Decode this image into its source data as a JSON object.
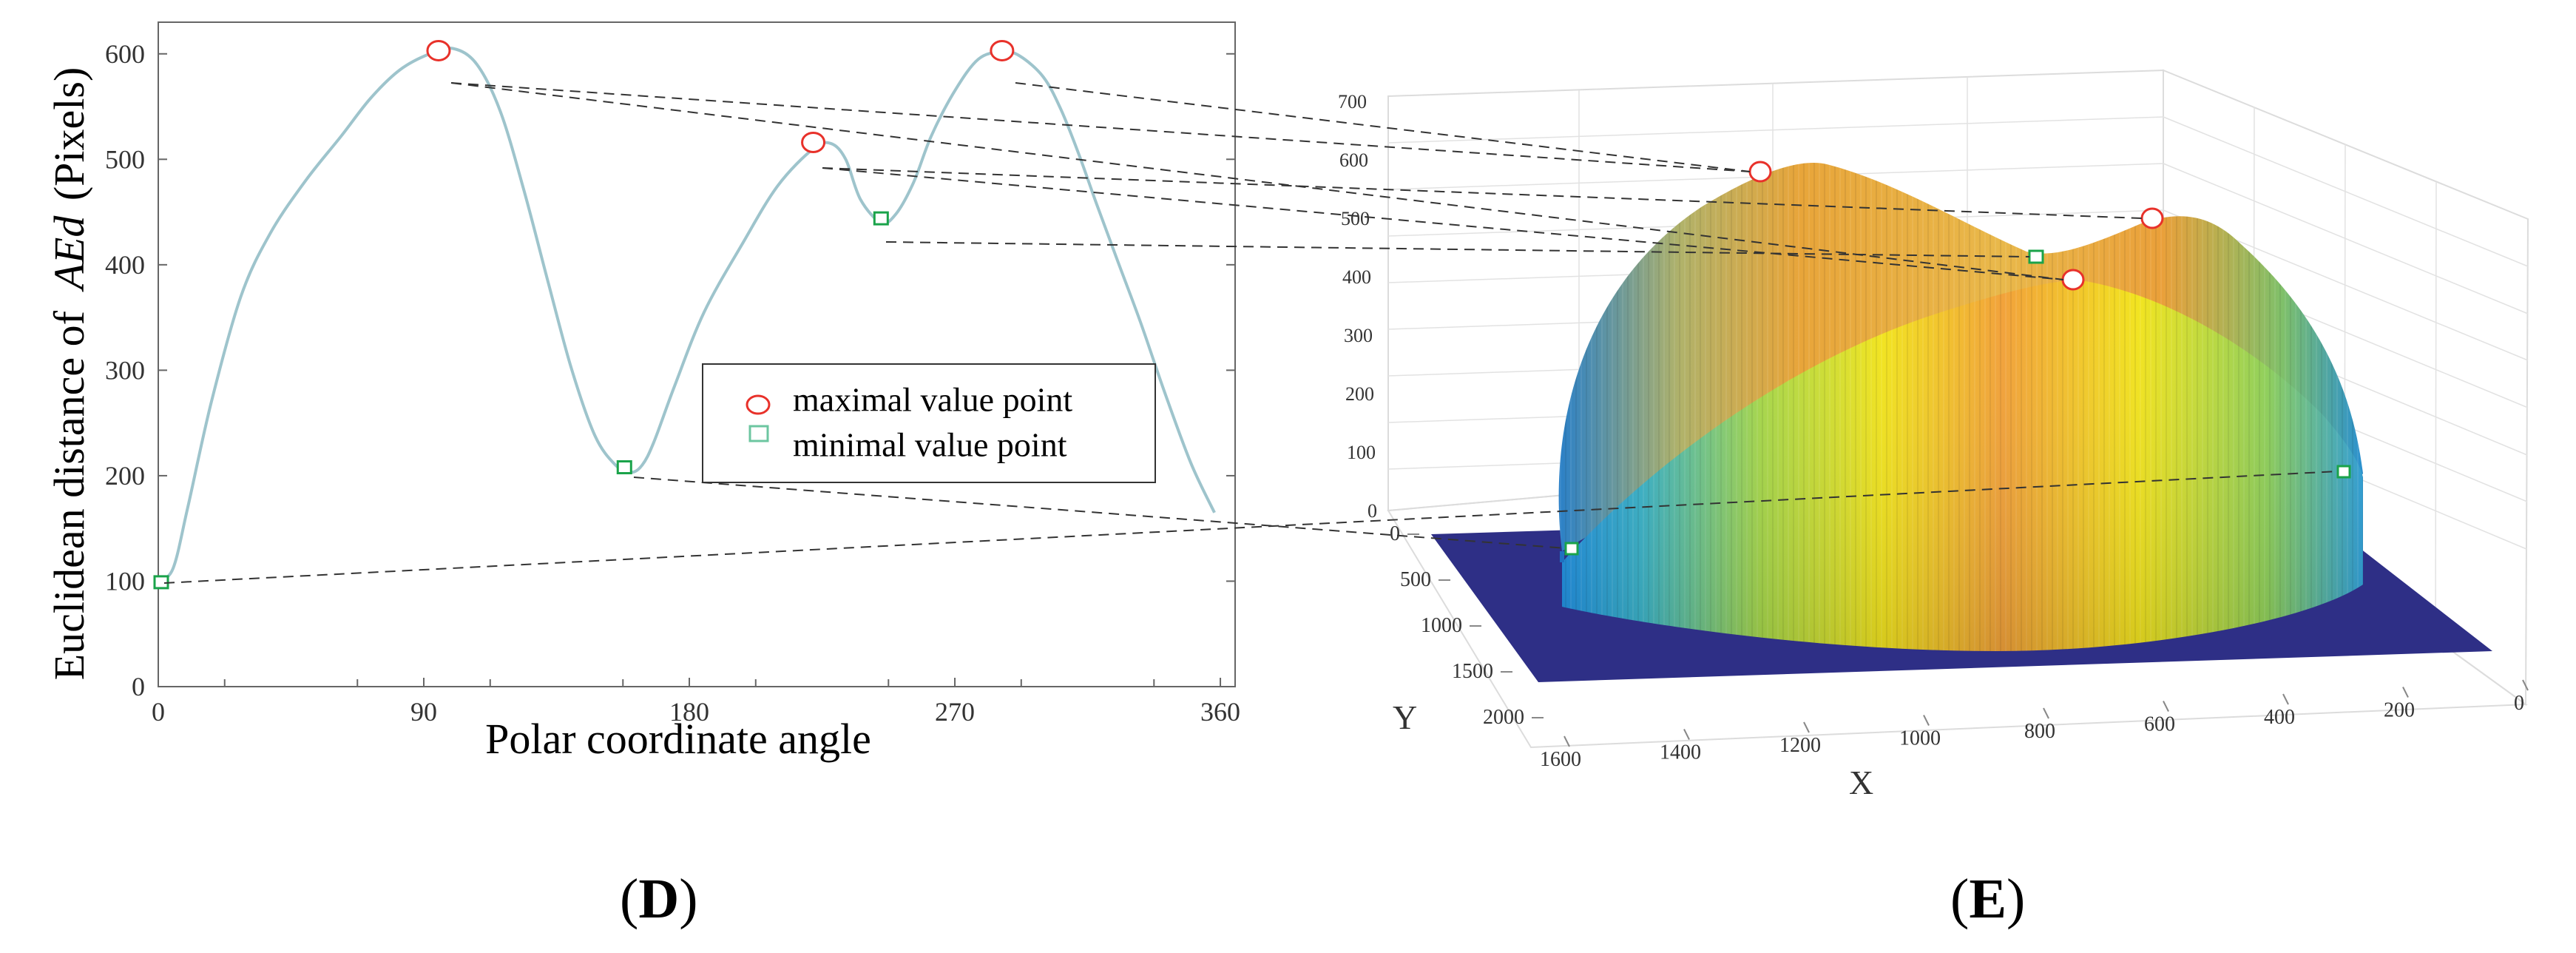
{
  "chart_data": [
    {
      "panel": "D",
      "type": "line",
      "xlabel": "Polar coordinate angle",
      "ylabel_prefix": "Euclidean distance of",
      "ylabel_var": "AEd",
      "ylabel_unit": "(Pixels)",
      "xlim": [
        0,
        365
      ],
      "ylim": [
        0,
        630
      ],
      "xticks": [
        0,
        90,
        180,
        270,
        360
      ],
      "yticks": [
        0,
        100,
        200,
        300,
        400,
        500,
        600
      ],
      "grid": false,
      "legend_position": "center-right",
      "series": [
        {
          "x": [
            0,
            5,
            10,
            18,
            28,
            38,
            50,
            62,
            72,
            82,
            92,
            100,
            108,
            116,
            124,
            132,
            140,
            148,
            155,
            160,
            164,
            168,
            175,
            185,
            198,
            210,
            222,
            228,
            233,
            238,
            245,
            250,
            256,
            262,
            270,
            278,
            286,
            292,
            300,
            306,
            312,
            318,
            325,
            333,
            341,
            350,
            358
          ],
          "y": [
            100,
            112,
            170,
            270,
            370,
            430,
            480,
            522,
            558,
            585,
            600,
            605,
            590,
            545,
            470,
            385,
            302,
            238,
            210,
            203,
            210,
            232,
            285,
            355,
            420,
            475,
            510,
            515,
            500,
            462,
            440,
            448,
            478,
            522,
            565,
            595,
            602,
            598,
            578,
            547,
            505,
            458,
            405,
            345,
            280,
            212,
            165
          ]
        }
      ],
      "maxima": [
        {
          "x": 95,
          "y": 603
        },
        {
          "x": 222,
          "y": 516
        },
        {
          "x": 286,
          "y": 603
        }
      ],
      "minima": [
        {
          "x": 1,
          "y": 99
        },
        {
          "x": 158,
          "y": 208
        },
        {
          "x": 245,
          "y": 444
        }
      ],
      "legend": [
        {
          "symbol": "circle",
          "label": "maximal value point"
        },
        {
          "symbol": "square",
          "label": "minimal value point"
        }
      ],
      "colors": {
        "line": "#9ec4cc",
        "maxima": "#e8312a",
        "minima": "#1aa34a",
        "axis": "#555555"
      }
    },
    {
      "panel": "E",
      "type": "surface",
      "xlabel": "X",
      "ylabel": "Y",
      "zticks": [
        0,
        100,
        200,
        300,
        400,
        500,
        600,
        700
      ],
      "xticks": [
        1600,
        1400,
        1200,
        1000,
        800,
        600,
        400,
        200,
        0
      ],
      "yticks": [
        0,
        500,
        1000,
        1500,
        2000
      ],
      "grid": true,
      "colors": {
        "base_plane": "#2e2f86",
        "colormap_low": "#1f8fe0",
        "colormap_mid": "#f2e41f",
        "colormap_high": "#f2a23a"
      }
    }
  ],
  "labels": {
    "panel_d": "D",
    "panel_e": "E"
  }
}
